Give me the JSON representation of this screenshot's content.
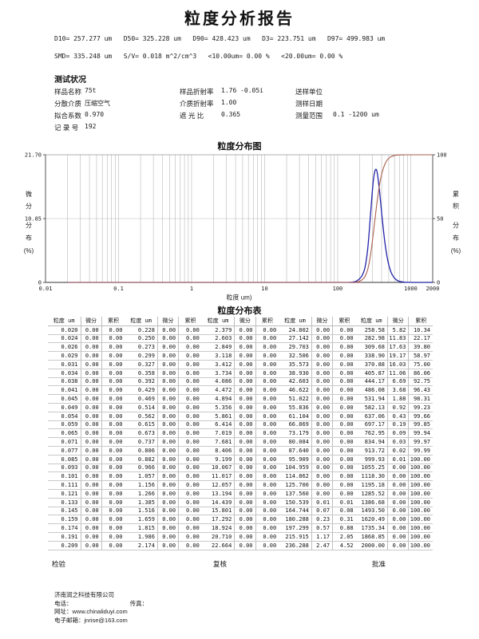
{
  "title": "粒度分析报告",
  "summary": {
    "line1": [
      {
        "label": "D10=",
        "value": "257.277",
        "unit": "um"
      },
      {
        "label": "D50=",
        "value": "325.228",
        "unit": "um"
      },
      {
        "label": "D90=",
        "value": "428.423",
        "unit": "um"
      },
      {
        "label": "D3=",
        "value": "223.751",
        "unit": "um"
      },
      {
        "label": "D97=",
        "value": "499.983",
        "unit": "um"
      }
    ],
    "line2": [
      {
        "label": "SMD=",
        "value": "335.248",
        "unit": "um"
      },
      {
        "label": "S/V=",
        "value": "0.018",
        "unit": "m^2/cm^3"
      },
      {
        "label": "<10.00um=",
        "value": "0.00",
        "unit": "%"
      },
      {
        "label": "<20.00um=",
        "value": "0.00",
        "unit": "%"
      }
    ]
  },
  "test_conditions": {
    "heading": "测试状况",
    "rows": [
      [
        {
          "label": "样品名称",
          "value": "75t"
        },
        {
          "label": "样品折射率",
          "value": "1.76 -0.05i"
        },
        {
          "label": "送样单位",
          "value": ""
        }
      ],
      [
        {
          "label": "分散介质",
          "value": "压缩空气"
        },
        {
          "label": "介质折射率",
          "value": "1.00"
        },
        {
          "label": "测样日期",
          "value": ""
        }
      ],
      [
        {
          "label": "拟合系数",
          "value": "0.970"
        },
        {
          "label": "遮 光 比",
          "value": "0.365"
        },
        {
          "label": "测量范围",
          "value": "0.1 -1200 um"
        }
      ],
      [
        {
          "label": "记 录 号",
          "value": "192"
        }
      ]
    ]
  },
  "chart_data": {
    "type": "line",
    "title": "粒度分布图",
    "xlabel": "粒度 um)",
    "x_scale": "log",
    "xlim": [
      0.01,
      2000
    ],
    "x_ticks": [
      {
        "value": 0.01,
        "label": "0.01"
      },
      {
        "value": 0.1,
        "label": "0.1"
      },
      {
        "value": 1,
        "label": "1"
      },
      {
        "value": 10,
        "label": "10"
      },
      {
        "value": 100,
        "label": "100"
      },
      {
        "value": 1000,
        "label": "1000"
      },
      {
        "value": 2000,
        "label": "2000"
      }
    ],
    "left_axis": {
      "label_chars": [
        "微",
        "分",
        "分",
        "布",
        "(%)"
      ],
      "max": 21.7,
      "ticks": [
        {
          "value": 21.7,
          "label": "21.70"
        },
        {
          "value": 10.85,
          "label": "10.85"
        },
        {
          "value": 0,
          "label": "0"
        }
      ]
    },
    "right_axis": {
      "label_chars": [
        "累",
        "积",
        "分",
        "布",
        "(%)"
      ],
      "max": 100,
      "ticks": [
        {
          "value": 100,
          "label": "100"
        },
        {
          "value": 50,
          "label": "50"
        },
        {
          "value": 0,
          "label": "0"
        }
      ]
    },
    "grid": true,
    "gridline_color": "#b8b8b8",
    "series": [
      {
        "name": "微分分布",
        "axis": "left",
        "color": "#2222a8",
        "x": [
          0.02,
          100,
          137.56,
          150.539,
          164.744,
          180.288,
          197.299,
          215.915,
          236.288,
          258.58,
          282.98,
          309.68,
          338.9,
          370.88,
          405.87,
          444.17,
          486.08,
          531.94,
          582.13,
          637.06,
          697.17,
          762.95,
          834.94,
          913.72,
          999.93,
          1055.25,
          1200,
          2000
        ],
        "y": [
          0,
          0,
          0,
          0.01,
          0.07,
          0.23,
          0.57,
          1.17,
          2.47,
          5.82,
          11.83,
          17.63,
          19.17,
          16.03,
          11.06,
          6.69,
          3.68,
          1.88,
          0.92,
          0.43,
          0.19,
          0.09,
          0.03,
          0.02,
          0.01,
          0,
          0,
          0
        ]
      },
      {
        "name": "累积分布",
        "axis": "right",
        "color": "#a9604e",
        "x": [
          0.02,
          100,
          137.56,
          150.539,
          164.744,
          180.288,
          197.299,
          215.915,
          236.288,
          258.58,
          282.98,
          309.68,
          338.9,
          370.88,
          405.87,
          444.17,
          486.08,
          531.94,
          582.13,
          637.06,
          697.17,
          762.95,
          834.94,
          913.72,
          999.93,
          1200,
          2000
        ],
        "y": [
          0,
          0,
          0,
          0.01,
          0.08,
          0.31,
          0.88,
          2.05,
          4.52,
          10.34,
          22.17,
          39.8,
          58.97,
          75.0,
          86.06,
          92.75,
          96.43,
          98.31,
          99.23,
          99.66,
          99.85,
          99.94,
          99.97,
          99.99,
          100,
          100,
          100
        ]
      }
    ]
  },
  "table": {
    "title": "粒度分布表",
    "headers": [
      "粒度 um",
      "微分",
      "累积"
    ],
    "groups": [
      {
        "rows": [
          [
            "0.020",
            "0.00",
            "0.00"
          ],
          [
            "0.024",
            "0.00",
            "0.00"
          ],
          [
            "0.026",
            "0.00",
            "0.00"
          ],
          [
            "0.029",
            "0.00",
            "0.00"
          ],
          [
            "0.031",
            "0.00",
            "0.00"
          ],
          [
            "0.034",
            "0.00",
            "0.00"
          ],
          [
            "0.038",
            "0.00",
            "0.00"
          ],
          [
            "0.041",
            "0.00",
            "0.00"
          ],
          [
            "0.045",
            "0.00",
            "0.00"
          ],
          [
            "0.049",
            "0.00",
            "0.00"
          ],
          [
            "0.054",
            "0.00",
            "0.00"
          ],
          [
            "0.059",
            "0.00",
            "0.00"
          ],
          [
            "0.065",
            "0.00",
            "0.00"
          ],
          [
            "0.071",
            "0.00",
            "0.00"
          ],
          [
            "0.077",
            "0.00",
            "0.00"
          ],
          [
            "0.085",
            "0.00",
            "0.00"
          ],
          [
            "0.093",
            "0.00",
            "0.00"
          ],
          [
            "0.101",
            "0.00",
            "0.00"
          ],
          [
            "0.111",
            "0.00",
            "0.00"
          ],
          [
            "0.121",
            "0.00",
            "0.00"
          ],
          [
            "0.133",
            "0.00",
            "0.00"
          ],
          [
            "0.145",
            "0.00",
            "0.00"
          ],
          [
            "0.159",
            "0.00",
            "0.00"
          ],
          [
            "0.174",
            "0.00",
            "0.00"
          ],
          [
            "0.191",
            "0.00",
            "0.00"
          ],
          [
            "0.209",
            "0.00",
            "0.00"
          ]
        ]
      },
      {
        "rows": [
          [
            "0.228",
            "0.00",
            "0.00"
          ],
          [
            "0.250",
            "0.00",
            "0.00"
          ],
          [
            "0.273",
            "0.00",
            "0.00"
          ],
          [
            "0.299",
            "0.00",
            "0.00"
          ],
          [
            "0.327",
            "0.00",
            "0.00"
          ],
          [
            "0.358",
            "0.00",
            "0.00"
          ],
          [
            "0.392",
            "0.00",
            "0.00"
          ],
          [
            "0.429",
            "0.00",
            "0.00"
          ],
          [
            "0.469",
            "0.00",
            "0.00"
          ],
          [
            "0.514",
            "0.00",
            "0.00"
          ],
          [
            "0.562",
            "0.00",
            "0.00"
          ],
          [
            "0.615",
            "0.00",
            "0.00"
          ],
          [
            "0.673",
            "0.00",
            "0.00"
          ],
          [
            "0.737",
            "0.00",
            "0.00"
          ],
          [
            "0.806",
            "0.00",
            "0.00"
          ],
          [
            "0.882",
            "0.00",
            "0.00"
          ],
          [
            "0.966",
            "0.00",
            "0.00"
          ],
          [
            "1.057",
            "0.00",
            "0.00"
          ],
          [
            "1.156",
            "0.00",
            "0.00"
          ],
          [
            "1.266",
            "0.00",
            "0.00"
          ],
          [
            "1.385",
            "0.00",
            "0.00"
          ],
          [
            "1.516",
            "0.00",
            "0.00"
          ],
          [
            "1.659",
            "0.00",
            "0.00"
          ],
          [
            "1.815",
            "0.00",
            "0.00"
          ],
          [
            "1.986",
            "0.00",
            "0.00"
          ],
          [
            "2.174",
            "0.00",
            "0.00"
          ]
        ]
      },
      {
        "rows": [
          [
            "2.379",
            "0.00",
            "0.00"
          ],
          [
            "2.603",
            "0.00",
            "0.00"
          ],
          [
            "2.849",
            "0.00",
            "0.00"
          ],
          [
            "3.118",
            "0.00",
            "0.00"
          ],
          [
            "3.412",
            "0.00",
            "0.00"
          ],
          [
            "3.734",
            "0.00",
            "0.00"
          ],
          [
            "4.086",
            "0.00",
            "0.00"
          ],
          [
            "4.472",
            "0.00",
            "0.00"
          ],
          [
            "4.894",
            "0.00",
            "0.00"
          ],
          [
            "5.356",
            "0.00",
            "0.00"
          ],
          [
            "5.861",
            "0.00",
            "0.00"
          ],
          [
            "6.414",
            "0.00",
            "0.00"
          ],
          [
            "7.019",
            "0.00",
            "0.00"
          ],
          [
            "7.681",
            "0.00",
            "0.00"
          ],
          [
            "8.406",
            "0.00",
            "0.00"
          ],
          [
            "9.199",
            "0.00",
            "0.00"
          ],
          [
            "10.067",
            "0.00",
            "0.00"
          ],
          [
            "11.017",
            "0.00",
            "0.00"
          ],
          [
            "12.057",
            "0.00",
            "0.00"
          ],
          [
            "13.194",
            "0.00",
            "0.00"
          ],
          [
            "14.439",
            "0.00",
            "0.00"
          ],
          [
            "15.801",
            "0.00",
            "0.00"
          ],
          [
            "17.292",
            "0.00",
            "0.00"
          ],
          [
            "18.924",
            "0.00",
            "0.00"
          ],
          [
            "20.710",
            "0.00",
            "0.00"
          ],
          [
            "22.664",
            "0.00",
            "0.00"
          ]
        ]
      },
      {
        "rows": [
          [
            "24.802",
            "0.00",
            "0.00"
          ],
          [
            "27.142",
            "0.00",
            "0.00"
          ],
          [
            "29.703",
            "0.00",
            "0.00"
          ],
          [
            "32.506",
            "0.00",
            "0.00"
          ],
          [
            "35.573",
            "0.00",
            "0.00"
          ],
          [
            "38.930",
            "0.00",
            "0.00"
          ],
          [
            "42.603",
            "0.00",
            "0.00"
          ],
          [
            "46.622",
            "0.00",
            "0.00"
          ],
          [
            "51.022",
            "0.00",
            "0.00"
          ],
          [
            "55.836",
            "0.00",
            "0.00"
          ],
          [
            "61.104",
            "0.00",
            "0.00"
          ],
          [
            "66.869",
            "0.00",
            "0.00"
          ],
          [
            "73.179",
            "0.00",
            "0.00"
          ],
          [
            "80.084",
            "0.00",
            "0.00"
          ],
          [
            "87.640",
            "0.00",
            "0.00"
          ],
          [
            "95.909",
            "0.00",
            "0.00"
          ],
          [
            "104.959",
            "0.00",
            "0.00"
          ],
          [
            "114.862",
            "0.00",
            "0.00"
          ],
          [
            "125.700",
            "0.00",
            "0.00"
          ],
          [
            "137.560",
            "0.00",
            "0.00"
          ],
          [
            "150.539",
            "0.01",
            "0.01"
          ],
          [
            "164.744",
            "0.07",
            "0.08"
          ],
          [
            "180.288",
            "0.23",
            "0.31"
          ],
          [
            "197.299",
            "0.57",
            "0.88"
          ],
          [
            "215.915",
            "1.17",
            "2.05"
          ],
          [
            "236.288",
            "2.47",
            "4.52"
          ]
        ]
      },
      {
        "rows": [
          [
            "258.58",
            "5.82",
            "10.34"
          ],
          [
            "282.98",
            "11.83",
            "22.17"
          ],
          [
            "309.68",
            "17.63",
            "39.80"
          ],
          [
            "338.90",
            "19.17",
            "58.97"
          ],
          [
            "370.88",
            "16.03",
            "75.00"
          ],
          [
            "405.87",
            "11.06",
            "86.06"
          ],
          [
            "444.17",
            "6.69",
            "92.75"
          ],
          [
            "486.08",
            "3.68",
            "96.43"
          ],
          [
            "531.94",
            "1.88",
            "98.31"
          ],
          [
            "582.13",
            "0.92",
            "99.23"
          ],
          [
            "637.06",
            "0.43",
            "99.66"
          ],
          [
            "697.17",
            "0.19",
            "99.85"
          ],
          [
            "762.95",
            "0.09",
            "99.94"
          ],
          [
            "834.94",
            "0.03",
            "99.97"
          ],
          [
            "913.72",
            "0.02",
            "99.99"
          ],
          [
            "999.93",
            "0.01",
            "100.00"
          ],
          [
            "1055.25",
            "0.00",
            "100.00"
          ],
          [
            "1118.30",
            "0.00",
            "100.00"
          ],
          [
            "1195.18",
            "0.00",
            "100.00"
          ],
          [
            "1285.52",
            "0.00",
            "100.00"
          ],
          [
            "1386.68",
            "0.00",
            "100.00"
          ],
          [
            "1493.50",
            "0.00",
            "100.00"
          ],
          [
            "1620.49",
            "0.00",
            "100.00"
          ],
          [
            "1735.34",
            "0.00",
            "100.00"
          ],
          [
            "1868.85",
            "0.00",
            "100.00"
          ],
          [
            "2000.00",
            "0.00",
            "100.00"
          ]
        ]
      }
    ]
  },
  "footer": {
    "sign_labels": [
      "检验",
      "复核",
      "批准"
    ],
    "company": "济南润之科技有限公司",
    "phone_label": "电话：",
    "fax_label": "传真：",
    "website_label": "网址：",
    "website": "www.chinaliduyi.com",
    "email_label": "电子邮箱：",
    "email": "jnrise@163.com"
  }
}
